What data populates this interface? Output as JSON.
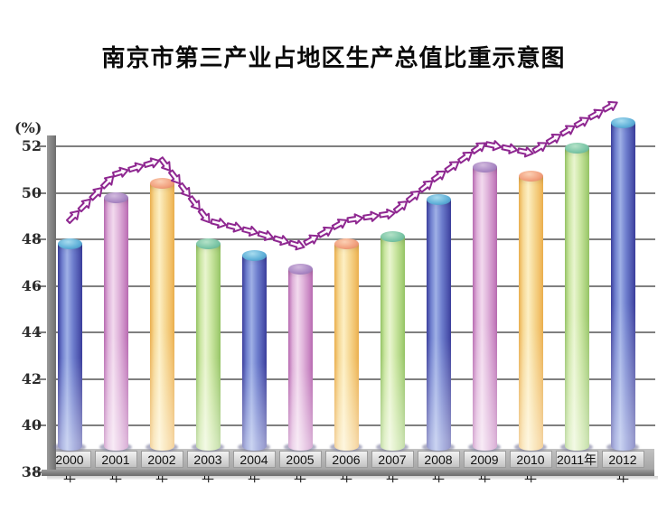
{
  "title": "南京市第三产业占地区生产总值比重示意图",
  "y_axis": {
    "unit_label": "(%)",
    "ticks": [
      52,
      50,
      48,
      46,
      44,
      42,
      40,
      38
    ]
  },
  "chart_data": {
    "type": "bar",
    "title": "南京市第三产业占地区生产总值比重示意图",
    "categories": [
      "2000年",
      "2001年",
      "2002年",
      "2003年",
      "2004年",
      "2005年",
      "2006年",
      "2007年",
      "2008年",
      "2009年",
      "2010年",
      "2011年",
      "2012年"
    ],
    "values": [
      48.0,
      50.0,
      50.6,
      48.0,
      47.5,
      46.9,
      48.0,
      48.3,
      49.9,
      51.3,
      50.9,
      52.1,
      53.2
    ],
    "xlabel": "",
    "ylabel": "(%)",
    "ylim": [
      38,
      53.6
    ],
    "yticks": [
      38,
      40,
      42,
      44,
      46,
      48,
      50,
      52
    ],
    "grid": true,
    "legend": false,
    "bar_style": "3d-cylinder",
    "color_cycle": [
      "blue",
      "pink",
      "yellow",
      "green"
    ],
    "annotations": "dashed purple block-arrow trend line following the bar tops, rising 2000-2002, dipping to 2005, rising to 2012"
  },
  "colors": {
    "trend_arrow_outline": "#8e2790",
    "trend_arrow_fill": "#fdf8fd",
    "grid_line": "#7f7f7f",
    "axis": "#7d7d7d",
    "tick_text": "#2b2b2b",
    "band_background": "#b3b3b3",
    "category_text": "#111111",
    "palette": [
      {
        "name": "blue",
        "cap": "#5fb0d8",
        "capHi": "#a8dcef",
        "capRim": "#3e7fb4",
        "edge": "#3c3f9e",
        "mid": "#6f7fce",
        "hi": "#9fb0e6"
      },
      {
        "name": "pink",
        "cap": "#aa88c4",
        "capHi": "#d2bade",
        "capRim": "#8a66a8",
        "edge": "#bb6cb4",
        "mid": "#dfb2da",
        "hi": "#f2daee"
      },
      {
        "name": "yellow",
        "cap": "#f2a07e",
        "capHi": "#fbd0b4",
        "capRim": "#d87f58",
        "edge": "#eeb14e",
        "mid": "#f6d894",
        "hi": "#fdefc4"
      },
      {
        "name": "green",
        "cap": "#7ac5a6",
        "capHi": "#b4e2c8",
        "capRim": "#58a886",
        "edge": "#97c666",
        "mid": "#cbe6a2",
        "hi": "#e9f5d0"
      }
    ]
  }
}
